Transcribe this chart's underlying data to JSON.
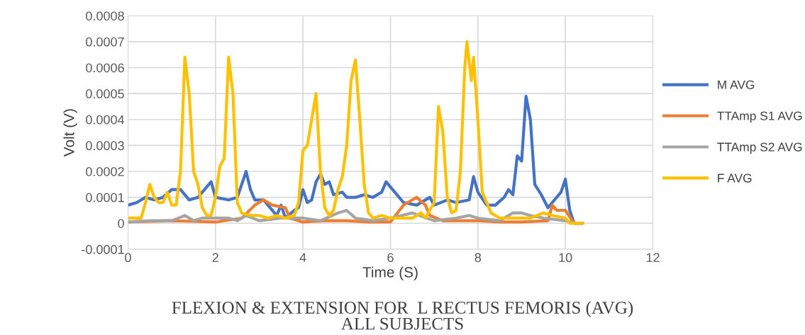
{
  "chart_data": {
    "type": "line",
    "title": "FLEXION & EXTENSION FOR  L RECTUS FEMORIS (AVG)\nALL SUBJECTS",
    "xlabel": "Time (S)",
    "ylabel": "Volt (V)",
    "xlim": [
      0,
      12
    ],
    "xticks": [
      0,
      2,
      4,
      6,
      8,
      10,
      12
    ],
    "ylim": [
      -0.0001,
      0.0008
    ],
    "yticks": [
      {
        "value": -0.0001,
        "label": "-0.0001"
      },
      {
        "value": 0,
        "label": "0"
      },
      {
        "value": 0.0001,
        "label": "0.0001"
      },
      {
        "value": 0.0002,
        "label": "0.0002"
      },
      {
        "value": 0.0003,
        "label": "0.0003"
      },
      {
        "value": 0.0004,
        "label": "0.0004"
      },
      {
        "value": 0.0005,
        "label": "0.0005"
      },
      {
        "value": 0.0006,
        "label": "0.0006"
      },
      {
        "value": 0.0007,
        "label": "0.0007"
      },
      {
        "value": 0.0008,
        "label": "0.0008"
      }
    ],
    "grid": true,
    "legend": "right",
    "line_style": "solid",
    "marker": "none",
    "series": [
      {
        "name": "M AVG",
        "color": "#4472c4",
        "x": [
          0,
          0.2,
          0.4,
          0.6,
          0.8,
          1.0,
          1.2,
          1.4,
          1.6,
          1.9,
          2.0,
          2.3,
          2.5,
          2.6,
          2.7,
          2.8,
          2.9,
          3.1,
          3.2,
          3.4,
          3.5,
          3.6,
          3.8,
          3.9,
          4.0,
          4.1,
          4.2,
          4.3,
          4.4,
          4.5,
          4.6,
          4.7,
          4.9,
          5.0,
          5.2,
          5.4,
          5.6,
          5.8,
          5.9,
          6.1,
          6.3,
          6.6,
          6.9,
          7.0,
          7.3,
          7.5,
          7.8,
          7.9,
          8.0,
          8.2,
          8.4,
          8.6,
          8.7,
          8.8,
          8.9,
          9.0,
          9.1,
          9.2,
          9.3,
          9.45,
          9.6,
          9.7,
          9.9,
          10.0,
          10.1,
          10.2,
          10.4
        ],
        "values": [
          7e-05,
          8e-05,
          0.0001,
          9e-05,
          0.0001,
          0.00013,
          0.00013,
          9e-05,
          0.0001,
          0.00016,
          0.0001,
          9e-05,
          0.0001,
          0.00015,
          0.0002,
          0.00013,
          9e-05,
          9e-05,
          7e-05,
          3e-05,
          7e-05,
          2e-05,
          5e-05,
          6e-05,
          0.00013,
          8e-05,
          9e-05,
          0.00016,
          0.00019,
          0.00015,
          0.00016,
          0.00011,
          0.00012,
          0.0001,
          0.0001,
          0.00011,
          0.0001,
          0.00012,
          0.00016,
          0.00012,
          8e-05,
          7e-05,
          0.0001,
          7e-05,
          9e-05,
          8e-05,
          9e-05,
          0.00018,
          0.00012,
          7e-05,
          7e-05,
          0.0001,
          0.00013,
          0.00011,
          0.00026,
          0.00024,
          0.00049,
          0.0004,
          0.00015,
          0.00011,
          6e-05,
          8e-05,
          0.00012,
          0.00017,
          5e-05,
          0,
          0
        ]
      },
      {
        "name": "TTAmp S1 AVG",
        "color": "#ed7d31",
        "x": [
          0,
          1.0,
          2.0,
          2.6,
          2.9,
          3.1,
          3.3,
          3.6,
          3.7,
          4.0,
          4.5,
          5.0,
          5.5,
          6.0,
          6.3,
          6.5,
          6.6,
          6.8,
          6.9,
          7.2,
          8.0,
          8.5,
          9.0,
          9.6,
          9.7,
          9.8,
          10.0,
          10.2,
          10.4
        ],
        "values": [
          5e-06,
          1e-05,
          5e-06,
          2e-05,
          7e-05,
          9e-05,
          7e-05,
          6e-05,
          2e-05,
          5e-06,
          1e-05,
          1e-05,
          5e-06,
          5e-06,
          7e-05,
          9e-05,
          0.0001,
          7e-05,
          3e-05,
          1e-05,
          1e-05,
          5e-06,
          5e-06,
          1e-05,
          7e-05,
          5e-05,
          5e-05,
          0,
          0
        ]
      },
      {
        "name": "TTAmp S2 AVG",
        "color": "#a5a5a5",
        "x": [
          0,
          0.5,
          1.0,
          1.3,
          1.5,
          1.7,
          2.0,
          2.3,
          2.5,
          2.7,
          3.0,
          3.5,
          4.0,
          4.4,
          4.8,
          5.0,
          5.2,
          5.6,
          6.0,
          6.5,
          7.0,
          7.5,
          7.8,
          8.0,
          8.5,
          8.8,
          9.0,
          9.2,
          9.5,
          10.0,
          10.2,
          10.4
        ],
        "values": [
          5e-06,
          1e-05,
          1e-05,
          3e-05,
          1e-05,
          2e-05,
          2e-05,
          2e-05,
          1e-05,
          3e-05,
          1e-05,
          2e-05,
          2e-05,
          1e-05,
          4e-05,
          5e-05,
          2e-05,
          1e-05,
          2e-05,
          4e-05,
          1e-05,
          2e-05,
          3e-05,
          2e-05,
          1e-05,
          4e-05,
          4e-05,
          3e-05,
          2e-05,
          1e-05,
          0,
          0
        ]
      },
      {
        "name": "F AVG",
        "color": "#ffc000",
        "x": [
          0,
          0.3,
          0.4,
          0.5,
          0.6,
          0.7,
          0.8,
          0.9,
          1.0,
          1.1,
          1.2,
          1.3,
          1.4,
          1.5,
          1.6,
          1.7,
          1.8,
          1.9,
          2.0,
          2.1,
          2.2,
          2.3,
          2.4,
          2.5,
          2.6,
          2.8,
          3.0,
          3.2,
          3.4,
          3.6,
          3.8,
          3.9,
          4.0,
          4.1,
          4.2,
          4.3,
          4.4,
          4.5,
          4.6,
          4.7,
          4.8,
          4.9,
          5.0,
          5.1,
          5.2,
          5.3,
          5.4,
          5.5,
          5.6,
          5.8,
          6.0,
          6.3,
          6.5,
          6.7,
          6.8,
          7.0,
          7.1,
          7.2,
          7.3,
          7.4,
          7.5,
          7.6,
          7.7,
          7.75,
          7.85,
          7.9,
          8.0,
          8.1,
          8.3,
          8.5,
          9.0,
          9.2,
          9.5,
          9.7,
          10.0,
          10.1,
          10.4
        ],
        "values": [
          2e-05,
          2e-05,
          8e-05,
          0.00015,
          0.0001,
          8e-05,
          8e-05,
          0.00012,
          7e-05,
          7e-05,
          0.0002,
          0.00064,
          0.0005,
          0.0002,
          0.00015,
          6e-05,
          3e-05,
          3e-05,
          0.0001,
          0.00022,
          0.00025,
          0.00064,
          0.0005,
          8e-05,
          4e-05,
          3e-05,
          3e-05,
          2e-05,
          3e-05,
          2e-05,
          3e-05,
          8e-05,
          0.00028,
          0.0003,
          0.0004,
          0.0005,
          0.0002,
          6e-05,
          3e-05,
          5e-05,
          0.00013,
          0.00018,
          0.0003,
          0.00055,
          0.00063,
          0.0004,
          0.00015,
          4e-05,
          2e-05,
          3e-05,
          2e-05,
          2e-05,
          2e-05,
          4e-05,
          2e-05,
          8e-05,
          0.00045,
          0.00035,
          0.0001,
          4e-05,
          5e-05,
          0.0002,
          0.0006,
          0.0007,
          0.00055,
          0.00064,
          0.0004,
          0.00012,
          4e-05,
          2e-05,
          2e-05,
          2e-05,
          4e-05,
          3e-05,
          2e-05,
          0,
          0
        ]
      }
    ]
  }
}
